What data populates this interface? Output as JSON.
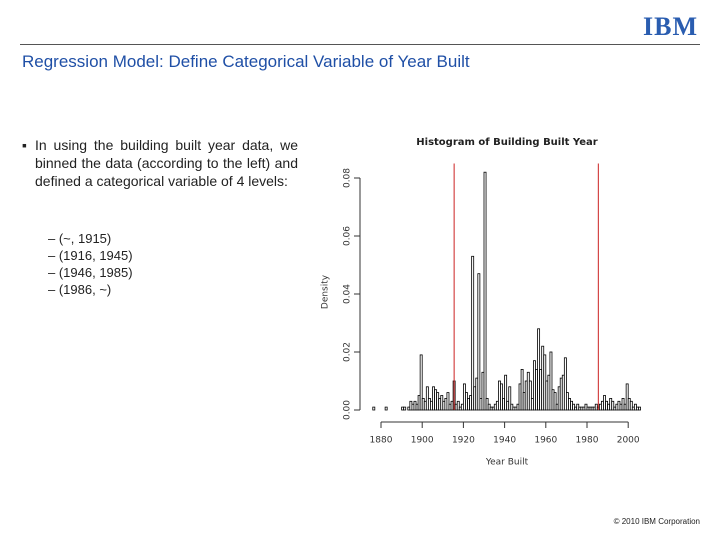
{
  "header": {
    "logo": "IBM",
    "title": "Regression Model: Define Categorical Variable of Year Built"
  },
  "bullet": "In using the building built year data, we binned the data (according to the left) and defined a categorical variable of 4 levels:",
  "sub_bullets": [
    "(~, 1915)",
    "(1916, 1945)",
    "(1946, 1985)",
    "(1986, ~)"
  ],
  "footer": "© 2010 IBM Corporation",
  "chart_data": {
    "type": "histogram",
    "title": "Histogram of Building Built Year",
    "x_label": "Year Built",
    "y_label": "Density",
    "bins": [
      1875,
      1876,
      1877,
      1878,
      1879,
      1880,
      1881,
      1882,
      1883,
      1884,
      1885,
      1886,
      1887,
      1888,
      1889,
      1890,
      1891,
      1892,
      1893,
      1894,
      1895,
      1896,
      1897,
      1898,
      1899,
      1900,
      1901,
      1902,
      1903,
      1904,
      1905,
      1906,
      1907,
      1908,
      1909,
      1910,
      1911,
      1912,
      1913,
      1914,
      1915,
      1916,
      1917,
      1918,
      1919,
      1920,
      1921,
      1922,
      1923,
      1924,
      1925,
      1926,
      1927,
      1928,
      1929,
      1930,
      1931,
      1932,
      1933,
      1934,
      1935,
      1936,
      1937,
      1938,
      1939,
      1940,
      1941,
      1942,
      1943,
      1944,
      1945,
      1946,
      1947,
      1948,
      1949,
      1950,
      1951,
      1952,
      1953,
      1954,
      1955,
      1956,
      1957,
      1958,
      1959,
      1960,
      1961,
      1962,
      1963,
      1964,
      1965,
      1966,
      1967,
      1968,
      1969,
      1970,
      1971,
      1972,
      1973,
      1974,
      1975,
      1976,
      1977,
      1978,
      1979,
      1980,
      1981,
      1982,
      1983,
      1984,
      1985,
      1986,
      1987,
      1988,
      1989,
      1990,
      1991,
      1992,
      1993,
      1994,
      1995,
      1996,
      1997,
      1998,
      1999,
      2000,
      2001,
      2002,
      2003,
      2004,
      2005,
      2006,
      2007,
      2008,
      2009,
      2010
    ],
    "counts": [
      0,
      0.001,
      0,
      0,
      0,
      0,
      0,
      0.001,
      0,
      0,
      0,
      0,
      0,
      0,
      0,
      0.001,
      0.001,
      0,
      0.001,
      0.003,
      0.002,
      0.003,
      0.002,
      0.005,
      0.019,
      0.004,
      0.003,
      0.008,
      0.004,
      0.003,
      0.008,
      0.007,
      0.006,
      0.004,
      0.005,
      0.003,
      0.004,
      0.006,
      0.002,
      0.003,
      0.01,
      0.002,
      0.003,
      0.001,
      0.002,
      0.009,
      0.006,
      0.004,
      0.005,
      0.053,
      0.008,
      0.011,
      0.047,
      0.004,
      0.013,
      0.082,
      0.004,
      0.002,
      0.001,
      0.001,
      0.002,
      0.003,
      0.01,
      0.009,
      0.004,
      0.012,
      0.003,
      0.008,
      0.002,
      0.001,
      0.001,
      0.002,
      0.009,
      0.014,
      0.006,
      0.01,
      0.013,
      0.01,
      0.004,
      0.017,
      0.014,
      0.028,
      0.014,
      0.022,
      0.019,
      0.01,
      0.012,
      0.02,
      0.007,
      0.006,
      0.002,
      0.008,
      0.011,
      0.012,
      0.018,
      0.006,
      0.004,
      0.003,
      0.002,
      0.001,
      0.002,
      0.001,
      0.001,
      0.001,
      0.002,
      0.001,
      0.001,
      0.001,
      0.001,
      0.002,
      0.001,
      0.002,
      0.003,
      0.005,
      0.003,
      0.002,
      0.004,
      0.003,
      0.001,
      0.002,
      0.003,
      0.002,
      0.004,
      0.002,
      0.009,
      0.004,
      0.003,
      0.001,
      0.002,
      0.001,
      0.001,
      0,
      0,
      0,
      0
    ],
    "color": "#000000",
    "vlines": [
      1915.5,
      1985.5
    ],
    "vline_color": "#cc2222",
    "xlim": [
      1875,
      2010
    ],
    "ylim": [
      0,
      0.085
    ],
    "xticks": [
      1880,
      1900,
      1920,
      1940,
      1960,
      1980,
      2000
    ],
    "yticks": [
      {
        "value": 0,
        "label": "0.00"
      },
      {
        "value": 0.02,
        "label": "0.02"
      },
      {
        "value": 0.04,
        "label": "0.04"
      },
      {
        "value": 0.06,
        "label": "0.06"
      },
      {
        "value": 0.08,
        "label": "0.08"
      }
    ]
  }
}
